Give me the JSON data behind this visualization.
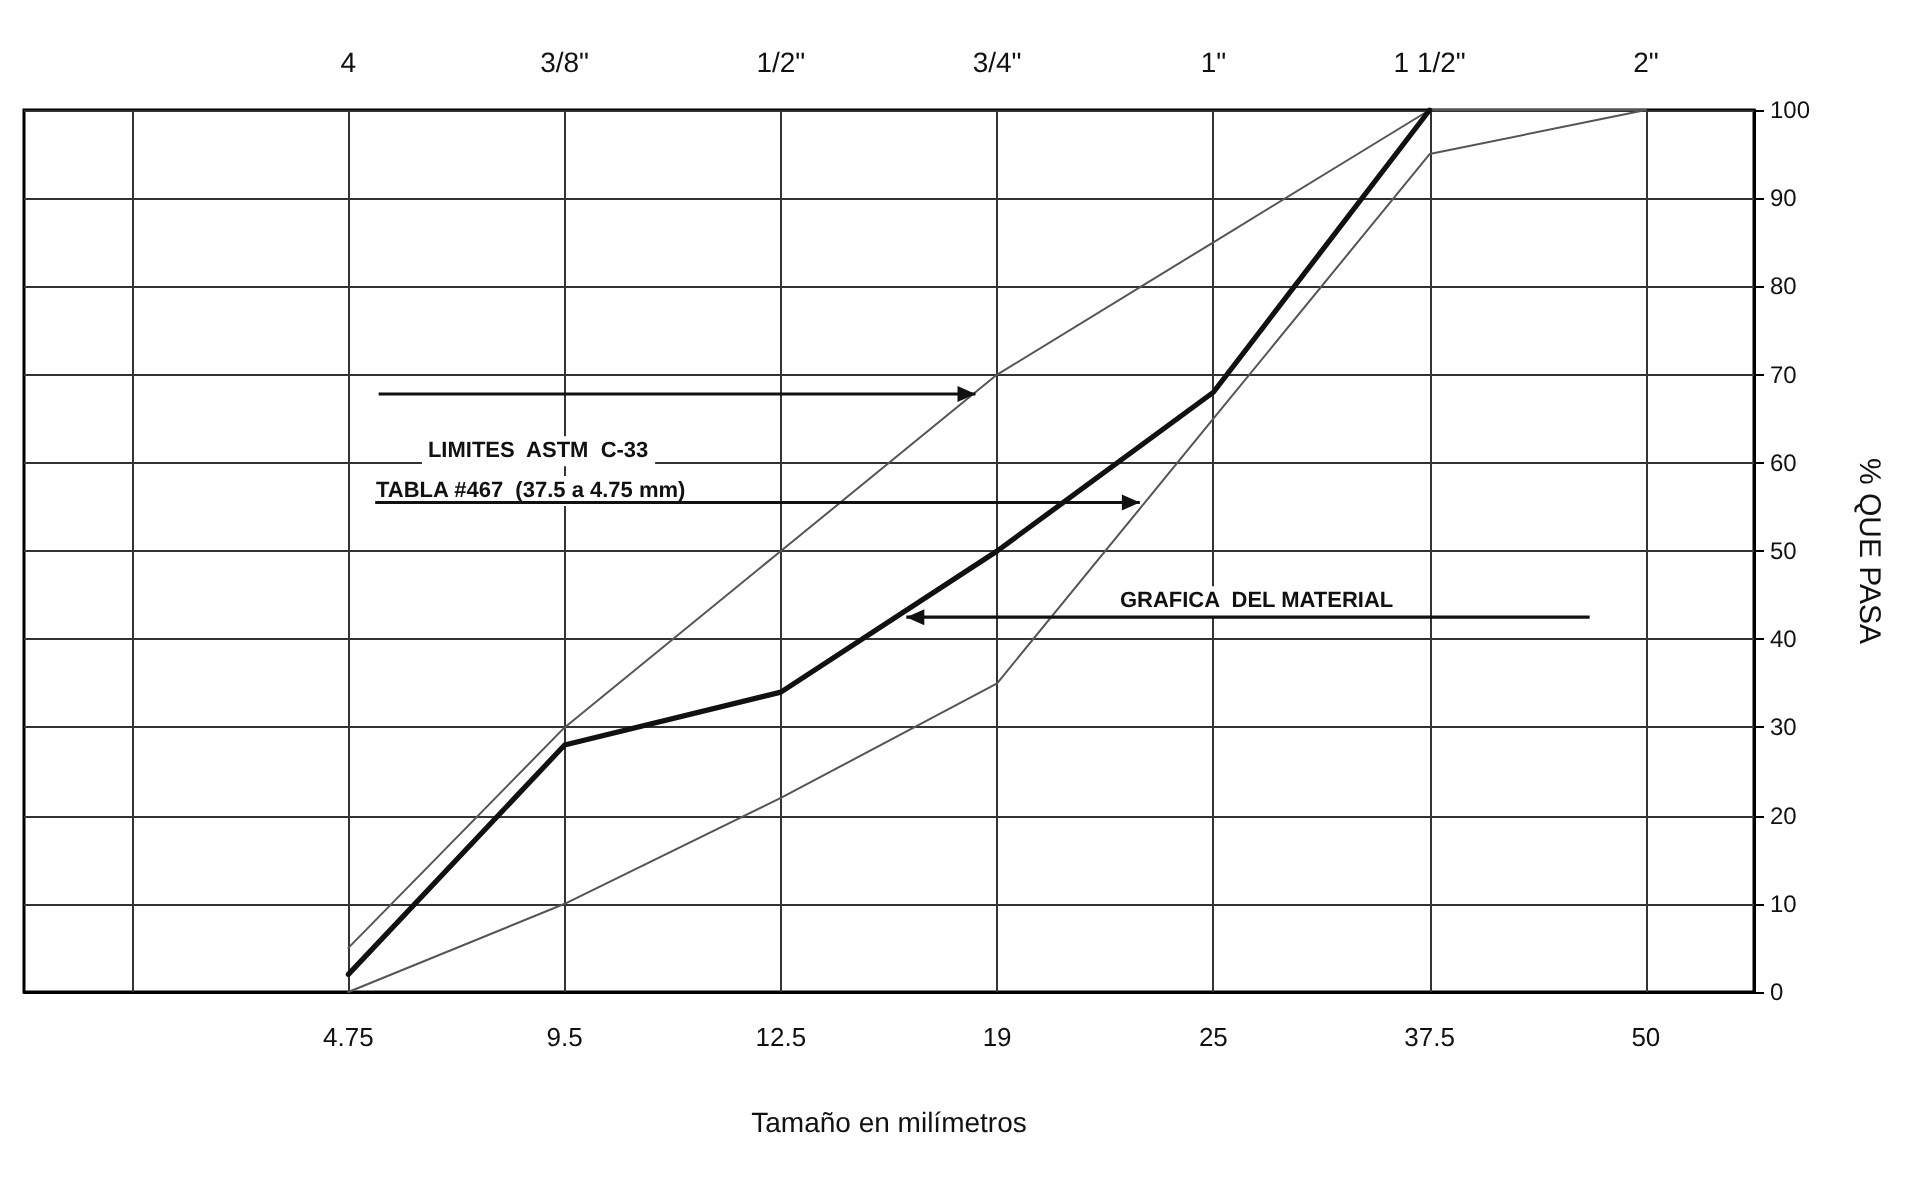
{
  "chart_data": {
    "type": "line",
    "xlabel": "Tamaño en milímetros",
    "ylabel": "% QUE PASA",
    "categories": [
      null,
      "4.75",
      "9.5",
      "12.5",
      "19",
      "25",
      "37.5",
      "50"
    ],
    "series": [
      {
        "color": "#555555",
        "values": [
          null,
          5,
          30,
          50,
          70,
          85,
          100,
          100
        ]
      },
      {
        "color": "#555555",
        "values": [
          null,
          0,
          10,
          22,
          35,
          65,
          95,
          100
        ]
      },
      {
        "color": "#111111",
        "values": [
          null,
          2,
          28,
          34,
          50,
          68,
          100,
          null
        ]
      }
    ],
    "ylim": [
      0,
      100
    ],
    "yticks": [
      0,
      10,
      20,
      30,
      40,
      50,
      60,
      70,
      80,
      90,
      100
    ],
    "grid": true,
    "marker": "none",
    "line_style": "solid",
    "annotations": [
      "LIMITES  ASTM  C-33",
      "TABLA #467  (37.5 a 4.75 mm)",
      "GRAFICA  DEL MATERIAL",
      "4",
      "3/8\"",
      "1/2\"",
      "3/4\"",
      "1\"",
      "1 1/2\"",
      "2\""
    ]
  }
}
